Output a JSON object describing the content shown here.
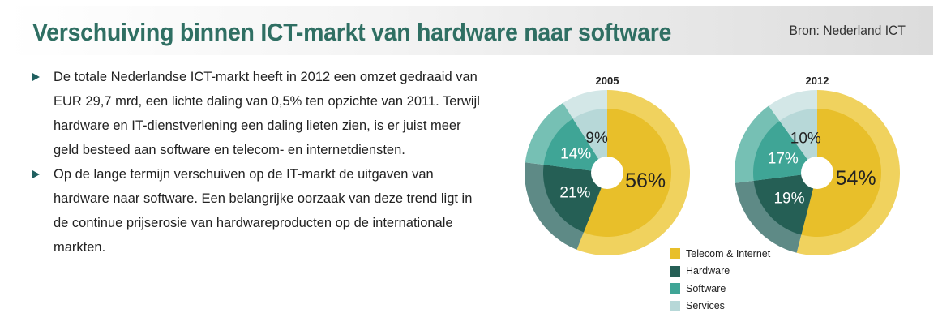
{
  "header": {
    "title": "Verschuiving binnen ICT-markt van hardware naar software",
    "source": "Bron: Nederland ICT"
  },
  "bullets": [
    "De totale Nederlandse ICT-markt heeft in 2012 een omzet gedraaid van EUR 29,7 mrd, een lichte daling van 0,5% ten opzichte van 2011. Terwijl hardware en IT-dienstverlening een daling lieten zien, is er juist meer geld besteed aan software en telecom- en internetdiensten.",
    "Op de lange termijn verschuiven op de IT-markt de uitgaven van hardware naar software. Een belangrijke oorzaak van deze trend ligt in de continue prijserosie van hardwareproducten op de internationale markten."
  ],
  "colors": {
    "Telecom & Internet": "#e8bf2a",
    "Hardware": "#255f55",
    "Software": "#3fa596",
    "Services": "#b7d8d8"
  },
  "chart_data": [
    {
      "type": "pie",
      "title": "2005",
      "categories": [
        "Telecom & Internet",
        "Hardware",
        "Software",
        "Services"
      ],
      "values": [
        56,
        21,
        14,
        9
      ],
      "labels": [
        "56%",
        "21%",
        "14%",
        "9%"
      ]
    },
    {
      "type": "pie",
      "title": "2012",
      "categories": [
        "Telecom & Internet",
        "Hardware",
        "Software",
        "Services"
      ],
      "values": [
        54,
        19,
        17,
        10
      ],
      "labels": [
        "54%",
        "19%",
        "17%",
        "10%"
      ]
    }
  ],
  "legend": [
    "Telecom & Internet",
    "Hardware",
    "Software",
    "Services"
  ]
}
